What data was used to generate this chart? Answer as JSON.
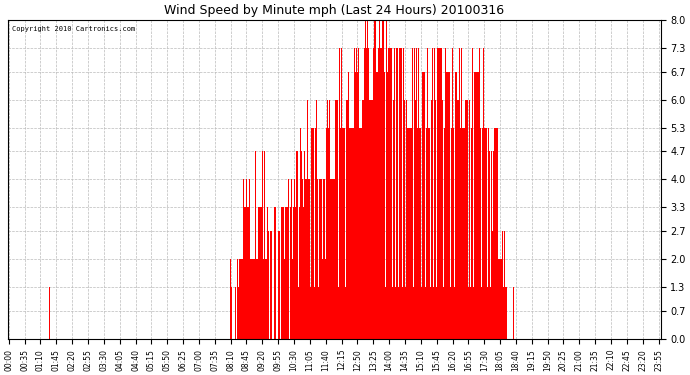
{
  "title": "Wind Speed by Minute mph (Last 24 Hours) 20100316",
  "copyright": "Copyright 2010 Cartronics.com",
  "bar_color": "#ff0000",
  "background_color": "#ffffff",
  "plot_background": "#ffffff",
  "grid_color": "#bbbbbb",
  "ylim": [
    0.0,
    8.0
  ],
  "yticks": [
    0.0,
    0.7,
    1.3,
    2.0,
    2.7,
    3.3,
    4.0,
    4.7,
    5.3,
    6.0,
    6.7,
    7.3,
    8.0
  ],
  "total_minutes": 1440,
  "xlabel_interval": 35
}
